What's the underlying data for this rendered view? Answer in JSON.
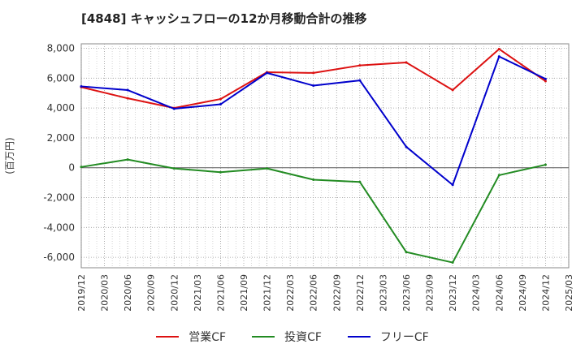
{
  "chart_data": {
    "type": "line",
    "title": "[4848]  キャッシュフローの12か月移動合計の推移",
    "ylabel": "(百万円)",
    "xlabel": "",
    "ylim": [
      -6700,
      8300
    ],
    "yticks": [
      8000,
      6000,
      4000,
      2000,
      0,
      -2000,
      -4000,
      -6000
    ],
    "ytick_labels": [
      "8,000",
      "6,000",
      "4,000",
      "2,000",
      "0",
      "-2,000",
      "-4,000",
      "-6,000"
    ],
    "x_categories": [
      "2019/12",
      "2020/03",
      "2020/06",
      "2020/09",
      "2020/12",
      "2021/03",
      "2021/06",
      "2021/09",
      "2021/12",
      "2022/03",
      "2022/06",
      "2022/09",
      "2022/12",
      "2023/03",
      "2023/06",
      "2023/09",
      "2023/12",
      "2024/03",
      "2024/06",
      "2024/09",
      "2024/12",
      "2025/03"
    ],
    "x": [
      "2019/12",
      "2020/06",
      "2020/12",
      "2021/06",
      "2021/12",
      "2022/06",
      "2022/12",
      "2023/06",
      "2023/12",
      "2024/06",
      "2024/12"
    ],
    "grid": true,
    "legend_position": "bottom",
    "series": [
      {
        "name": "営業CF",
        "color": "#dd1111",
        "values": [
          5400,
          4650,
          4000,
          4600,
          6400,
          6350,
          6850,
          7050,
          5200,
          7950,
          5800
        ]
      },
      {
        "name": "投資CF",
        "color": "#228b22",
        "values": [
          50,
          550,
          -50,
          -300,
          -50,
          -800,
          -950,
          -5650,
          -6350,
          -500,
          200
        ]
      },
      {
        "name": "フリーCF",
        "color": "#0000cc",
        "values": [
          5450,
          5200,
          3950,
          4250,
          6350,
          5500,
          5850,
          1400,
          -1150,
          7450,
          5950
        ]
      }
    ]
  }
}
